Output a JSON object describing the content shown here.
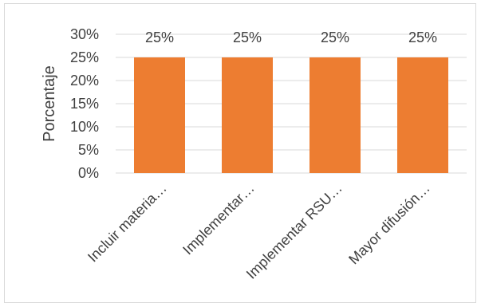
{
  "chart_data": {
    "type": "bar",
    "categories": [
      "Incluir materia…",
      "Implementar…",
      "Implementar RSU…",
      "Mayor difusión…"
    ],
    "values": [
      25,
      25,
      25,
      25
    ],
    "data_labels": [
      "25%",
      "25%",
      "25%",
      "25%"
    ],
    "title": "",
    "xlabel": "",
    "ylabel": "Porcentaje",
    "ylim": [
      0,
      30
    ],
    "yticks": [
      0,
      5,
      10,
      15,
      20,
      25,
      30
    ],
    "ytick_labels": [
      "0%",
      "5%",
      "10%",
      "15%",
      "20%",
      "25%",
      "30%"
    ],
    "grid": true,
    "legend": "none",
    "bar_color": "#ED7D31",
    "grid_color": "#D9D9D9",
    "text_color": "#404040"
  }
}
